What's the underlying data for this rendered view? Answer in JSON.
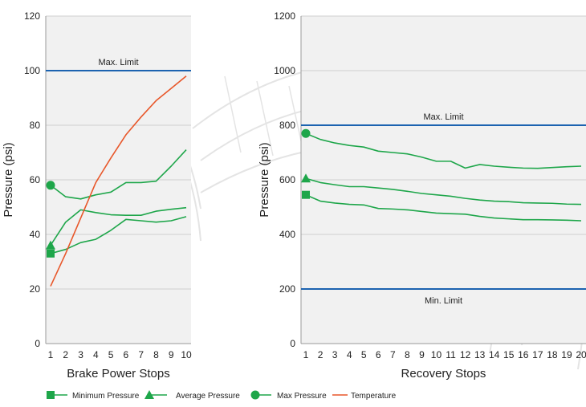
{
  "colors": {
    "plot_bg": "#f1f1f1",
    "grid": "#cfcfcf",
    "limit": "#1c63b0",
    "pressure": "#1ea64a",
    "temperature": "#e8572a",
    "backdrop": "#e4e4e4"
  },
  "legend": {
    "min": "Minimum Pressure",
    "avg": "Average Pressure",
    "max": "Max Pressure",
    "temp": "Temperature"
  },
  "chart_data": [
    {
      "type": "line",
      "xlabel": "Brake Power Stops",
      "ylabel": "Pressure (psi)",
      "ylim": [
        0,
        120
      ],
      "yticks": [
        0,
        20,
        40,
        60,
        80,
        100,
        120
      ],
      "x": [
        1,
        2,
        3,
        4,
        5,
        6,
        7,
        8,
        9,
        10
      ],
      "grid": true,
      "limits": [
        {
          "label": "Max. Limit",
          "value": 100
        }
      ],
      "series": [
        {
          "name": "Minimum Pressure",
          "key": "min",
          "marker": "square",
          "values": [
            33,
            34.5,
            37,
            38.2,
            41.5,
            45.5,
            45,
            44.5,
            45,
            46.5
          ]
        },
        {
          "name": "Average Pressure",
          "key": "avg",
          "marker": "triangle",
          "values": [
            36,
            44.5,
            49,
            48,
            47.2,
            47,
            47,
            48.5,
            49.2,
            49.8
          ]
        },
        {
          "name": "Max Pressure",
          "key": "max",
          "marker": "circle",
          "values": [
            58,
            53.8,
            53,
            54.5,
            55.5,
            59,
            59,
            59.5,
            65,
            71
          ]
        },
        {
          "name": "Temperature",
          "key": "temp",
          "marker": "none",
          "values": [
            21,
            33,
            46,
            59,
            68,
            76.5,
            83,
            89,
            93.5,
            98
          ]
        }
      ]
    },
    {
      "type": "line",
      "xlabel": "Recovery Stops",
      "ylabel": "Pressure (psi)",
      "ylim": [
        0,
        1200
      ],
      "yticks": [
        0,
        200,
        400,
        600,
        800,
        1000,
        1200
      ],
      "x": [
        1,
        2,
        3,
        4,
        5,
        6,
        7,
        8,
        9,
        10,
        11,
        12,
        13,
        14,
        15,
        16,
        17,
        18,
        19,
        20
      ],
      "grid": true,
      "limits": [
        {
          "label": "Max. Limit",
          "value": 800
        },
        {
          "label": "Min. Limit",
          "value": 200
        }
      ],
      "series": [
        {
          "name": "Minimum Pressure",
          "key": "min",
          "marker": "square",
          "values": [
            545,
            522,
            515,
            510,
            508,
            495,
            493,
            490,
            484,
            478,
            476,
            474,
            466,
            460,
            457,
            454,
            454,
            453,
            452,
            450
          ]
        },
        {
          "name": "Average Pressure",
          "key": "avg",
          "marker": "triangle",
          "values": [
            605,
            590,
            582,
            575,
            575,
            570,
            565,
            558,
            550,
            545,
            540,
            532,
            526,
            522,
            520,
            516,
            515,
            514,
            511,
            510
          ]
        },
        {
          "name": "Max Pressure",
          "key": "max",
          "marker": "circle",
          "values": [
            770,
            748,
            735,
            726,
            720,
            705,
            700,
            695,
            683,
            668,
            668,
            643,
            656,
            650,
            646,
            643,
            642,
            645,
            648,
            650
          ]
        }
      ]
    }
  ]
}
